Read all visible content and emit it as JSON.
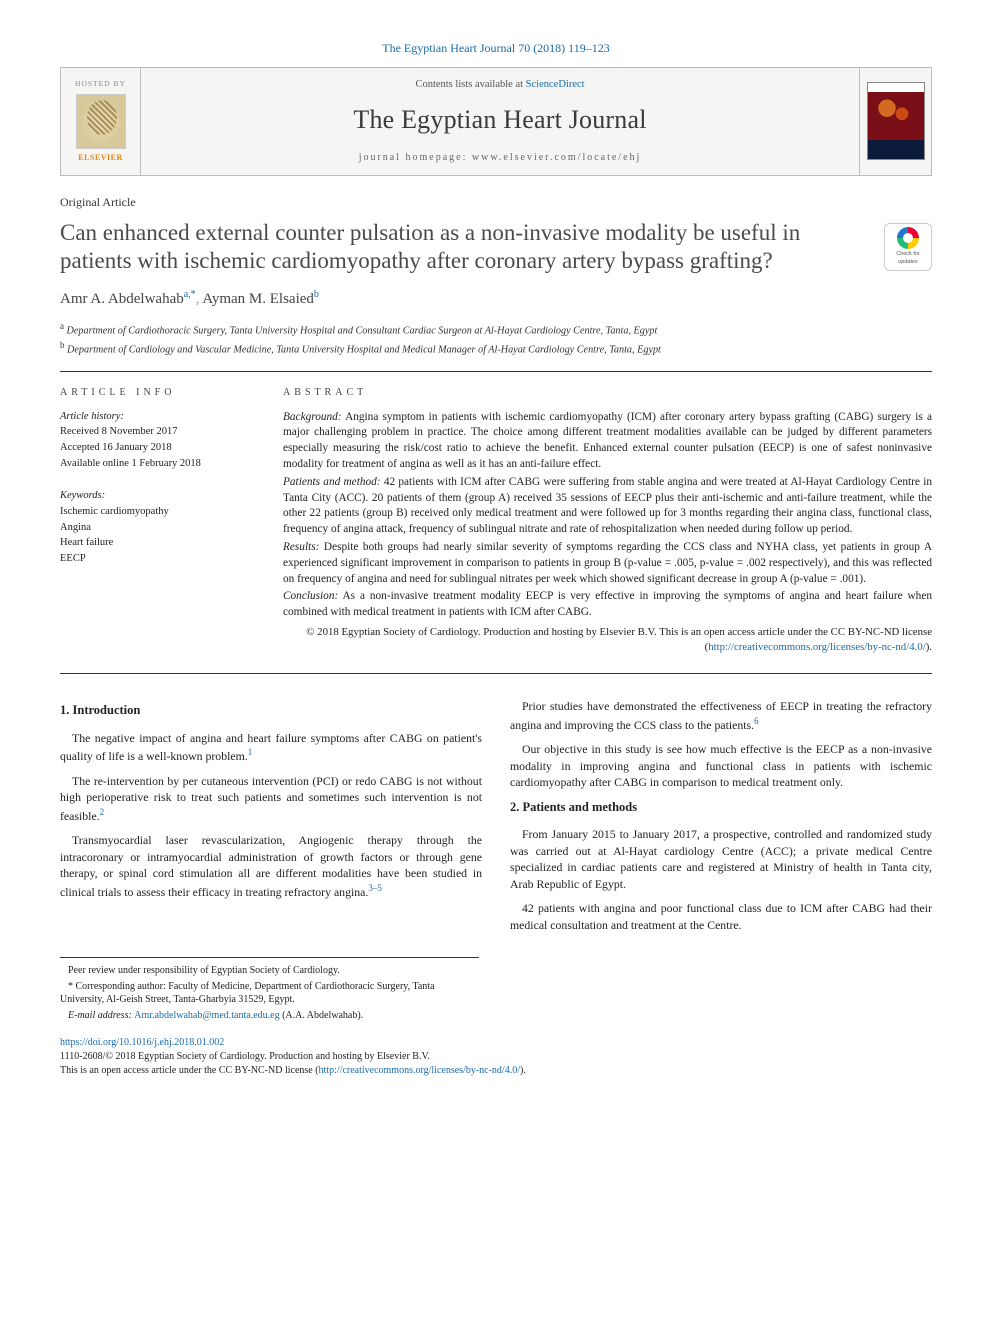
{
  "journal_ref": "The Egyptian Heart Journal 70 (2018) 119–123",
  "header": {
    "hosted_by": "HOSTED BY",
    "elsevier": "ELSEVIER",
    "contents_prefix": "Contents lists available at ",
    "contents_link": "ScienceDirect",
    "journal_name": "The Egyptian Heart Journal",
    "homepage": "journal homepage: www.elsevier.com/locate/ehj"
  },
  "article_type": "Original Article",
  "title": "Can enhanced external counter pulsation as a non-invasive modality be useful in patients with ischemic cardiomyopathy after coronary artery bypass grafting?",
  "crossmark": {
    "line1": "Check for",
    "line2": "updates"
  },
  "authors": [
    {
      "name": "Amr A. Abdelwahab",
      "marks": "a,*"
    },
    {
      "name": "Ayman M. Elsaied",
      "marks": "b"
    }
  ],
  "affiliations": [
    {
      "mark": "a",
      "text": "Department of Cardiothoracic Surgery, Tanta University Hospital and Consultant Cardiac Surgeon at Al-Hayat Cardiology Centre, Tanta, Egypt"
    },
    {
      "mark": "b",
      "text": "Department of Cardiology and Vascular Medicine, Tanta University Hospital and Medical Manager of Al-Hayat Cardiology Centre, Tanta, Egypt"
    }
  ],
  "info": {
    "heading": "ARTICLE INFO",
    "history_label": "Article history:",
    "history": [
      "Received 8 November 2017",
      "Accepted 16 January 2018",
      "Available online 1 February 2018"
    ],
    "keywords_label": "Keywords:",
    "keywords": [
      "Ischemic cardiomyopathy",
      "Angina",
      "Heart failure",
      "EECP"
    ]
  },
  "abstract": {
    "heading": "ABSTRACT",
    "sections": [
      {
        "label": "Background:",
        "text": " Angina symptom in patients with ischemic cardiomyopathy (ICM) after coronary artery bypass grafting (CABG) surgery is a major challenging problem in practice. The choice among different treatment modalities available can be judged by different parameters especially measuring the risk/cost ratio to achieve the benefit. Enhanced external counter pulsation (EECP) is one of safest noninvasive modality for treatment of angina as well as it has an anti-failure effect."
      },
      {
        "label": "Patients and method:",
        "text": " 42 patients with ICM after CABG were suffering from stable angina and were treated at Al-Hayat Cardiology Centre in Tanta City (ACC). 20 patients of them (group A) received 35 sessions of EECP plus their anti-ischemic and anti-failure treatment, while the other 22 patients (group B) received only medical treatment and were followed up for 3 months regarding their angina class, functional class, frequency of angina attack, frequency of sublingual nitrate and rate of rehospitalization when needed during follow up period."
      },
      {
        "label": "Results:",
        "text": " Despite both groups had nearly similar severity of symptoms regarding the CCS class and NYHA class, yet patients in group A experienced significant improvement in comparison to patients in group B (p-value = .005, p-value = .002 respectively), and this was reflected on frequency of angina and need for sublingual nitrates per week which showed significant decrease in group A (p-value = .001)."
      },
      {
        "label": "Conclusion:",
        "text": " As a non-invasive treatment modality EECP is very effective in improving the symptoms of angina and heart failure when combined with medical treatment in patients with ICM after CABG."
      }
    ],
    "copyright": "© 2018 Egyptian Society of Cardiology. Production and hosting by Elsevier B.V. This is an open access article under the CC BY-NC-ND license (",
    "license_url": "http://creativecommons.org/licenses/by-nc-nd/4.0/",
    "copyright_tail": ")."
  },
  "body": {
    "sec1_heading": "1. Introduction",
    "sec1_paras": [
      "The negative impact of angina and heart failure symptoms after CABG on patient's quality of life is a well-known problem.",
      "The re-intervention by per cutaneous intervention (PCI) or redo CABG is not without high perioperative risk to treat such patients and sometimes such intervention is not feasible.",
      "Transmyocardial laser revascularization, Angiogenic therapy through the intracoronary or intramyocardial administration of growth factors or through gene therapy, or spinal cord stimulation all are different modalities have been studied in clinical trials to assess their efficacy in treating refractory angina."
    ],
    "sec1_refs": [
      "1",
      "2",
      "3–5"
    ],
    "col2_paras": [
      "Prior studies have demonstrated the effectiveness of EECP in treating the refractory angina and improving the CCS class to the patients.",
      "Our objective in this study is see how much effective is the EECP as a non-invasive modality in improving angina and functional class in patients with ischemic cardiomyopathy after CABG in comparison to medical treatment only."
    ],
    "col2_ref": "6",
    "sec2_heading": "2. Patients and methods",
    "sec2_paras": [
      "From January 2015 to January 2017, a prospective, controlled and randomized study was carried out at Al-Hayat cardiology Centre (ACC); a private medical Centre specialized in cardiac patients care and registered at Ministry of health in Tanta city, Arab Republic of Egypt.",
      "42 patients with angina and poor functional class due to ICM after CABG had their medical consultation and treatment at the Centre."
    ]
  },
  "footnotes": {
    "peer": "Peer review under responsibility of Egyptian Society of Cardiology.",
    "corr": "* Corresponding author: Faculty of Medicine, Department of Cardiothoracic Surgery, Tanta University, Al-Geish Street, Tanta-Gharbyia 31529, Egypt.",
    "email_label": "E-mail address: ",
    "email": "Amr.abdelwahab@med.tanta.edu.eg",
    "email_tail": " (A.A. Abdelwahab)."
  },
  "doi": {
    "url": "https://doi.org/10.1016/j.ehj.2018.01.002",
    "line": "1110-2608/© 2018 Egyptian Society of Cardiology. Production and hosting by Elsevier B.V.",
    "license_line": "This is an open access article under the CC BY-NC-ND license (",
    "license_url": "http://creativecommons.org/licenses/by-nc-nd/4.0/",
    "tail": ")."
  },
  "colors": {
    "link": "#1a6ba8",
    "text": "#222222",
    "rule": "#333333",
    "bg": "#ffffff"
  }
}
